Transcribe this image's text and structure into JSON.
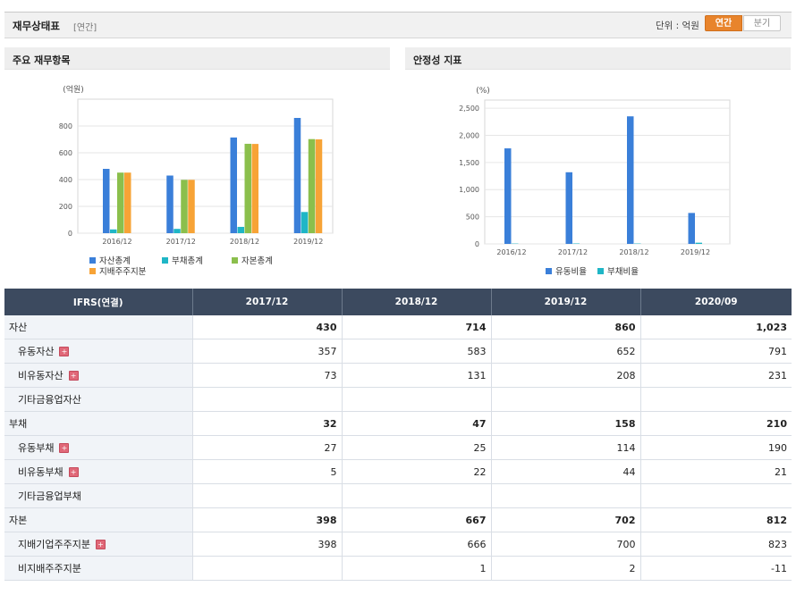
{
  "header": {
    "title": "재무상태표",
    "period_tag": "[연간]",
    "unit_label": "단위 : 억원",
    "toggle": [
      "연간",
      "분기"
    ]
  },
  "left_panel": {
    "title": "주요 재무항목"
  },
  "right_panel": {
    "title": "안정성 지표"
  },
  "chart_data": [
    {
      "type": "bar",
      "ylabel": "(억원)",
      "ylim": [
        0,
        1000
      ],
      "yticks": [
        0,
        200,
        400,
        600,
        800
      ],
      "ytick_labels": [
        "0",
        "200",
        "400",
        "600",
        "800"
      ],
      "categories": [
        "2016/12",
        "2017/12",
        "2018/12",
        "2019/12"
      ],
      "series": [
        {
          "name": "자산총계",
          "color": "#3a7fd9",
          "values": [
            480,
            430,
            714,
            860
          ]
        },
        {
          "name": "부채총계",
          "color": "#1fb6c6",
          "values": [
            28,
            32,
            47,
            158
          ]
        },
        {
          "name": "자본총계",
          "color": "#8bbf4c",
          "values": [
            452,
            398,
            667,
            702
          ]
        },
        {
          "name": "지배주주지분",
          "color": "#f7a336",
          "values": [
            452,
            398,
            666,
            700
          ]
        }
      ],
      "grid": true,
      "legend": "bottom"
    },
    {
      "type": "bar",
      "ylabel": "(%)",
      "ylim": [
        0,
        2650
      ],
      "yticks": [
        0,
        500,
        1000,
        1500,
        2000,
        2500
      ],
      "ytick_labels": [
        "0",
        "500",
        "1,000",
        "1,500",
        "2,000",
        "2,500"
      ],
      "categories": [
        "2016/12",
        "2017/12",
        "2018/12",
        "2019/12"
      ],
      "series": [
        {
          "name": "유동비율",
          "color": "#3a7fd9",
          "values": [
            1760,
            1320,
            2350,
            570
          ]
        },
        {
          "name": "부채비율",
          "color": "#1fb6c6",
          "values": [
            6,
            8,
            7,
            22
          ]
        }
      ],
      "grid": true,
      "legend": "bottom"
    }
  ],
  "table": {
    "header": [
      "IFRS(연결)",
      "2017/12",
      "2018/12",
      "2019/12",
      "2020/09"
    ],
    "rows": [
      {
        "label": "자산",
        "kind": "main",
        "expand": false,
        "values": [
          "430",
          "714",
          "860",
          "1,023"
        ]
      },
      {
        "label": "유동자산",
        "kind": "child",
        "expand": true,
        "values": [
          "357",
          "583",
          "652",
          "791"
        ]
      },
      {
        "label": "비유동자산",
        "kind": "child",
        "expand": true,
        "values": [
          "73",
          "131",
          "208",
          "231"
        ]
      },
      {
        "label": "기타금융업자산",
        "kind": "child",
        "expand": false,
        "values": [
          "",
          "",
          "",
          ""
        ]
      },
      {
        "label": "부채",
        "kind": "main",
        "expand": false,
        "values": [
          "32",
          "47",
          "158",
          "210"
        ]
      },
      {
        "label": "유동부채",
        "kind": "child",
        "expand": true,
        "values": [
          "27",
          "25",
          "114",
          "190"
        ]
      },
      {
        "label": "비유동부채",
        "kind": "child",
        "expand": true,
        "values": [
          "5",
          "22",
          "44",
          "21"
        ]
      },
      {
        "label": "기타금융업부채",
        "kind": "child",
        "expand": false,
        "values": [
          "",
          "",
          "",
          ""
        ]
      },
      {
        "label": "자본",
        "kind": "main",
        "expand": false,
        "values": [
          "398",
          "667",
          "702",
          "812"
        ]
      },
      {
        "label": "지배기업주주지분",
        "kind": "child",
        "expand": true,
        "values": [
          "398",
          "666",
          "700",
          "823"
        ]
      },
      {
        "label": "비지배주주지분",
        "kind": "child",
        "expand": false,
        "values": [
          "",
          "1",
          "2",
          "-11"
        ]
      }
    ]
  }
}
